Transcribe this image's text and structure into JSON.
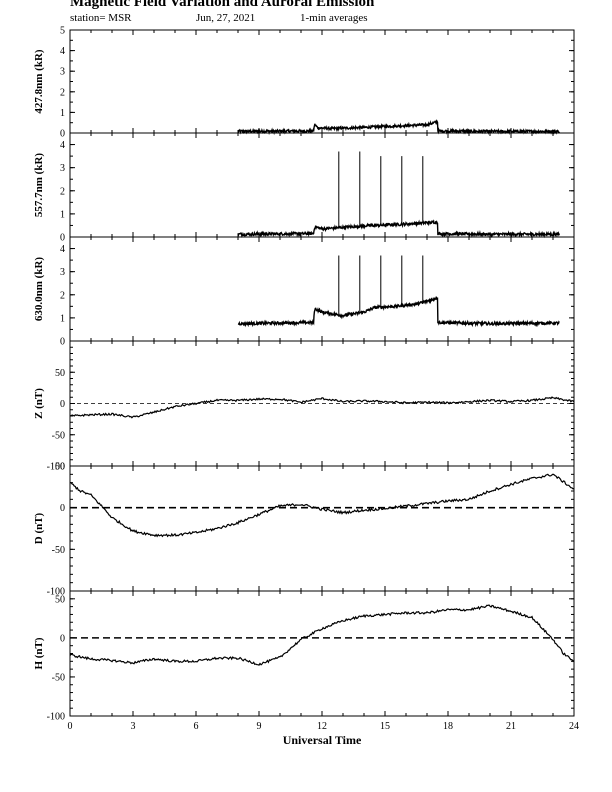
{
  "header": {
    "title": "Magnetic Field Variation and Auroral Emission",
    "station": "station= MSR",
    "date": "Jun, 27, 2021",
    "averaging": "1-min averages"
  },
  "chart_data": {
    "type": "line",
    "xlabel": "Universal Time",
    "x_ticks": [
      "0",
      "3",
      "6",
      "9",
      "12",
      "15",
      "18",
      "21",
      "24"
    ],
    "xlim": [
      0,
      24
    ],
    "panels": [
      {
        "id": "p4278",
        "ylabel": "427.8nm (kR)",
        "ylim": [
          0,
          5
        ],
        "y_ticks": [
          "0",
          "1",
          "2",
          "3",
          "4",
          "5"
        ],
        "zero_line": "solid",
        "segments": [
          {
            "x": [
              8.0,
              11.6,
              11.65,
              11.8,
              12.5,
              14,
              15,
              16,
              17,
              17.5,
              17.52,
              20,
              23.3
            ],
            "y": [
              0.08,
              0.1,
              0.42,
              0.25,
              0.22,
              0.27,
              0.32,
              0.36,
              0.4,
              0.55,
              0.1,
              0.08,
              0.08
            ]
          }
        ],
        "spikes": []
      },
      {
        "id": "p5577",
        "ylabel": "557.7nm (kR)",
        "ylim": [
          0,
          4.5
        ],
        "y_ticks": [
          "0",
          "1",
          "2",
          "3",
          "4"
        ],
        "zero_line": "solid",
        "segments": [
          {
            "x": [
              8.0,
              11.6,
              11.65,
              12,
              13,
              14,
              15,
              16,
              17,
              17.5,
              17.52,
              20,
              23.3
            ],
            "y": [
              0.12,
              0.15,
              0.45,
              0.35,
              0.42,
              0.48,
              0.52,
              0.56,
              0.62,
              0.65,
              0.14,
              0.12,
              0.12
            ]
          }
        ],
        "spikes": [
          {
            "x": 12.8,
            "y0": 0.4,
            "y1": 3.7
          },
          {
            "x": 13.8,
            "y0": 0.45,
            "y1": 3.7
          },
          {
            "x": 14.8,
            "y0": 0.5,
            "y1": 3.5
          },
          {
            "x": 15.8,
            "y0": 0.55,
            "y1": 3.5
          },
          {
            "x": 16.8,
            "y0": 0.6,
            "y1": 3.5
          }
        ]
      },
      {
        "id": "p6300",
        "ylabel": "630.0nm (kR)",
        "ylim": [
          0,
          4.5
        ],
        "y_ticks": [
          "0",
          "1",
          "2",
          "3",
          "4"
        ],
        "zero_line": "solid",
        "segments": [
          {
            "x": [
              8.0,
              11.6,
              11.65,
              12.0,
              13.0,
              14.0,
              14.5,
              15.5,
              16.5,
              17.3,
              17.5,
              17.52,
              20,
              23.3
            ],
            "y": [
              0.75,
              0.8,
              1.4,
              1.25,
              1.1,
              1.25,
              1.45,
              1.5,
              1.6,
              1.8,
              1.9,
              0.8,
              0.75,
              0.78
            ]
          }
        ],
        "spikes": [
          {
            "x": 12.8,
            "y0": 1.1,
            "y1": 3.7
          },
          {
            "x": 13.8,
            "y0": 1.2,
            "y1": 3.7
          },
          {
            "x": 14.8,
            "y0": 1.45,
            "y1": 3.7
          },
          {
            "x": 15.8,
            "y0": 1.5,
            "y1": 3.7
          },
          {
            "x": 16.8,
            "y0": 1.6,
            "y1": 3.7
          }
        ]
      },
      {
        "id": "pZ",
        "ylabel": "Z (nT)",
        "ylim": [
          -100,
          100
        ],
        "y_ticks": [
          "-100",
          "-50",
          "0",
          "50"
        ],
        "zero_line": "dashed_thin",
        "segments": [
          {
            "x": [
              0,
              1,
              2,
              3,
              4,
              5,
              6,
              7,
              8,
              9,
              10,
              11,
              12,
              13,
              14,
              15,
              16,
              17,
              18,
              19,
              20,
              21,
              22,
              23,
              24
            ],
            "y": [
              -20,
              -18,
              -17,
              -22,
              -14,
              -5,
              0,
              5,
              5,
              7,
              7,
              2,
              8,
              3,
              4,
              3,
              1,
              2,
              1,
              3,
              5,
              3,
              5,
              9,
              3
            ]
          }
        ],
        "spikes": []
      },
      {
        "id": "pD",
        "ylabel": "D (nT)",
        "ylim": [
          -100,
          50
        ],
        "y_ticks": [
          "-100",
          "-50",
          "0",
          "50"
        ],
        "zero_line": "dashed",
        "segments": [
          {
            "x": [
              0,
              0.5,
              1,
              1.5,
              2,
              3,
              4,
              5,
              6,
              7,
              8,
              9,
              10,
              11,
              12,
              13,
              14,
              15,
              16,
              17,
              18,
              19,
              20,
              21,
              22,
              23,
              24
            ],
            "y": [
              30,
              20,
              15,
              2,
              -12,
              -28,
              -33,
              -33,
              -30,
              -25,
              -18,
              -8,
              2,
              4,
              -2,
              -6,
              -3,
              -1,
              2,
              5,
              8,
              10,
              20,
              28,
              35,
              40,
              22
            ]
          }
        ],
        "spikes": []
      },
      {
        "id": "pH",
        "ylabel": "H (nT)",
        "ylim": [
          -100,
          60
        ],
        "y_ticks": [
          "-100",
          "-50",
          "0",
          "50"
        ],
        "zero_line": "dashed",
        "segments": [
          {
            "x": [
              0,
              1,
              2,
              3,
              4,
              5,
              6,
              7,
              8,
              9,
              10,
              11,
              12,
              13,
              14,
              15,
              16,
              17,
              18,
              19,
              20,
              21,
              22,
              23,
              23.5,
              24
            ],
            "y": [
              -22,
              -27,
              -29,
              -32,
              -27,
              -30,
              -30,
              -26,
              -26,
              -34,
              -25,
              -2,
              12,
              22,
              28,
              30,
              32,
              32,
              36,
              36,
              41,
              34,
              26,
              -2,
              -20,
              -30
            ]
          }
        ],
        "spikes": []
      }
    ]
  }
}
